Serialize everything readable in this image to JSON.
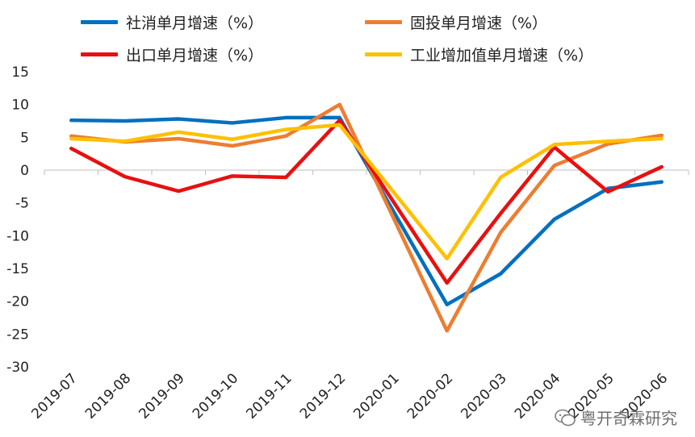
{
  "chart_data": {
    "type": "line",
    "categories": [
      "2019-07",
      "2019-08",
      "2019-09",
      "2019-10",
      "2019-11",
      "2019-12",
      "2020-01",
      "2020-02",
      "2020-03",
      "2020-04",
      "2020-05",
      "2020-06"
    ],
    "ylim": [
      -30,
      15
    ],
    "yticks": [
      15,
      10,
      5,
      0,
      -5,
      -10,
      -15,
      -20,
      -25,
      -30
    ],
    "grid": false,
    "legend_position": "top",
    "series": [
      {
        "name": "社消单月增速（%）",
        "color": "#0070C0",
        "values": [
          7.6,
          7.5,
          7.8,
          7.2,
          8.0,
          8.0,
          null,
          -20.5,
          -15.8,
          -7.5,
          -2.8,
          -1.8
        ]
      },
      {
        "name": "固投单月增速（%）",
        "color": "#ED7D31",
        "values": [
          5.2,
          4.3,
          4.8,
          3.7,
          5.2,
          10.0,
          null,
          -24.5,
          -9.5,
          0.7,
          4.0,
          5.3
        ]
      },
      {
        "name": "出口单月增速（%）",
        "color": "#E81010",
        "values": [
          3.3,
          -1.0,
          -3.2,
          -0.9,
          -1.1,
          7.6,
          null,
          -17.2,
          -6.6,
          3.5,
          -3.3,
          0.5
        ]
      },
      {
        "name": "工业增加值单月增速（%）",
        "color": "#FFC000",
        "values": [
          4.8,
          4.4,
          5.8,
          4.7,
          6.2,
          6.9,
          null,
          -13.5,
          -1.1,
          3.9,
          4.4,
          4.8
        ]
      }
    ]
  },
  "watermark": {
    "icon": "wechat-icon",
    "text": "粤开奇霖研究"
  }
}
